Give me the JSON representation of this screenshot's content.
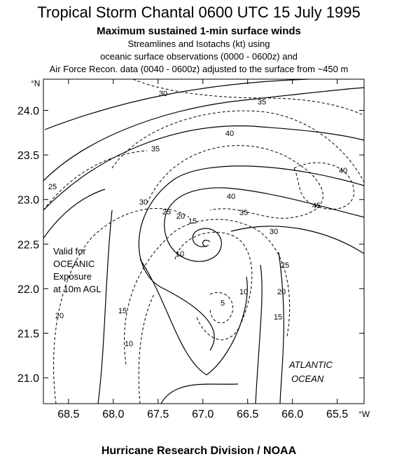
{
  "header": {
    "title": "Tropical Storm Chantal  0600 UTC 15 July 1995",
    "subtitle": "Maximum sustained 1-min surface winds",
    "lines": [
      "Streamlines and Isotachs (kt) using",
      "oceanic surface observations (0000 - 0600z) and",
      "Air Force Recon. data (0040 - 0600z) adjusted to the surface from ~450 m"
    ]
  },
  "map": {
    "xlim": [
      68.78,
      65.2
    ],
    "ylim": [
      20.71,
      24.35
    ],
    "xticks": [
      68.5,
      {
        "value": 68,
        "label": "68.0"
      },
      67.5,
      {
        "value": 67,
        "label": "67.0"
      },
      66.5,
      {
        "value": 66,
        "label": "66.0"
      },
      65.5
    ],
    "yticks": [
      {
        "value": 21,
        "label": "21.0"
      },
      21.5,
      {
        "value": 22,
        "label": "22.0"
      },
      22.5,
      {
        "value": 23,
        "label": "23.0"
      },
      23.5,
      {
        "value": 24,
        "label": "24.0"
      }
    ],
    "x_unit": "°W",
    "y_unit": "°N",
    "isotach_labels": [
      "30",
      "35",
      "40",
      "35",
      "40",
      "30",
      "40",
      "45",
      "25",
      "20",
      "15",
      "35",
      "30",
      "25",
      "20",
      "15",
      "10",
      "5",
      "10",
      "25",
      "20",
      "15",
      "10"
    ],
    "annotation": [
      "Valid for",
      "OCEANIC",
      "Exposure",
      "at 10m AGL"
    ],
    "ocean_label": [
      "ATLANTIC",
      "OCEAN"
    ]
  },
  "footer": "Hurricane Research Division / NOAA"
}
